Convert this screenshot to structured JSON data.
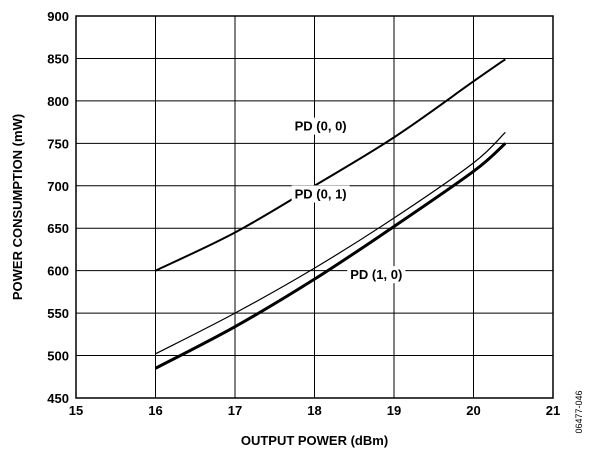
{
  "chart_data": {
    "type": "line",
    "title": "",
    "xlabel": "OUTPUT POWER (dBm)",
    "ylabel": "POWER CONSUMPTION (mW)",
    "xlim": [
      15,
      21
    ],
    "ylim": [
      450,
      900
    ],
    "xticks": [
      15,
      16,
      17,
      18,
      19,
      20,
      21
    ],
    "yticks": [
      450,
      500,
      550,
      600,
      650,
      700,
      750,
      800,
      850,
      900
    ],
    "grid": true,
    "legend": "none",
    "series": [
      {
        "name": "PD (0, 0)",
        "x": [
          16,
          17,
          18,
          19,
          20,
          20.4
        ],
        "y": [
          600,
          645,
          700,
          757,
          823,
          849
        ],
        "line_weight": "medium"
      },
      {
        "name": "PD (0, 1)",
        "x": [
          16,
          17,
          18,
          19,
          20,
          20.4
        ],
        "y": [
          502,
          550,
          603,
          662,
          727,
          763
        ],
        "line_weight": "thin"
      },
      {
        "name": "PD (1, 0)",
        "x": [
          16,
          17,
          18,
          19,
          20,
          20.4
        ],
        "y": [
          485,
          534,
          590,
          652,
          717,
          750
        ],
        "line_weight": "thick"
      }
    ],
    "figure_id": "06477-046"
  }
}
